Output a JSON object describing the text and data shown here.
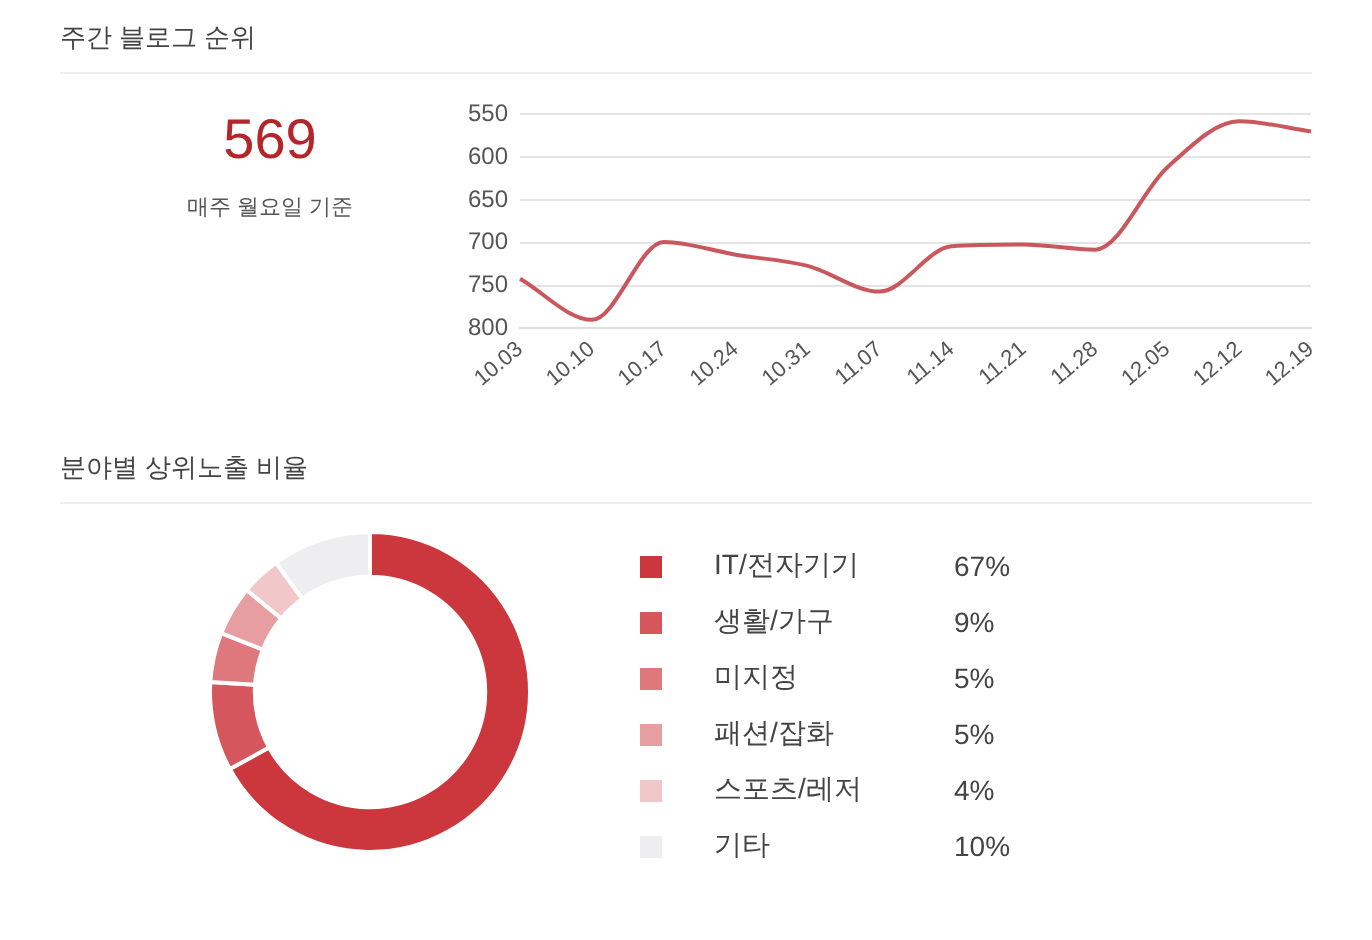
{
  "chart_data": [
    {
      "type": "other",
      "title": "주간 블로그 순위",
      "annotations": [
        "569",
        "매주 월요일 기준"
      ]
    },
    {
      "type": "line",
      "categories": [
        "10.03",
        "10.10",
        "10.17",
        "10.24",
        "10.31",
        "11.07",
        "11.14",
        "11.21",
        "11.28",
        "12.05",
        "12.12",
        "12.19"
      ],
      "series": [
        {
          "color": "#c9585e",
          "values": [
            742,
            790,
            699,
            714,
            727,
            757,
            704,
            702,
            708,
            612,
            558,
            570
          ]
        }
      ],
      "ylim": [
        800,
        550
      ],
      "yticks": [
        550,
        600,
        650,
        700,
        750,
        800
      ],
      "grid": "y",
      "legend": false,
      "marker": "none",
      "line_style": "solid"
    },
    {
      "type": "donut",
      "title": "분야별 상위노출 비율",
      "categories": [
        "IT/전자기기",
        "생활/가구",
        "미지정",
        "패션/잡화",
        "스포츠/레저",
        "기타"
      ],
      "values": [
        67,
        9,
        5,
        5,
        4,
        10
      ],
      "colors": [
        "#cb373c",
        "#d5565c",
        "#de787c",
        "#e79ea1",
        "#f1c7c9",
        "#eeeef0"
      ],
      "value_labels": [
        "67%",
        "9%",
        "5%",
        "5%",
        "4%",
        "10%"
      ],
      "legend": "right"
    }
  ]
}
